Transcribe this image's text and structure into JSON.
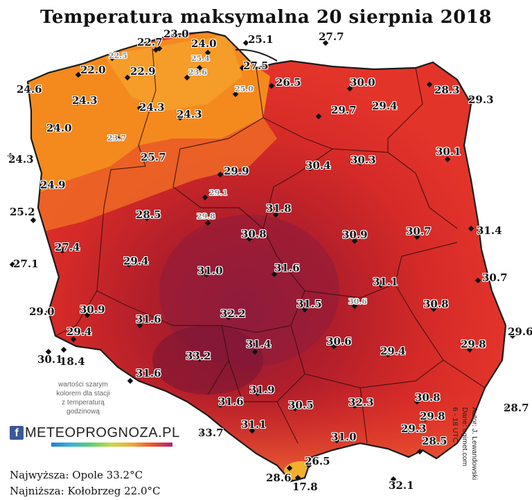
{
  "title": "Temperatura maksymalna 20 sierpnia 2018",
  "legend_note": [
    "wartości szarym",
    "kolorem dla stacji",
    "z temperaturą",
    "godzinową"
  ],
  "logo_text": "METEOPROGNOZA.PL",
  "logo_icon": "facebook-icon",
  "stats": {
    "highest": "Najwyższa: Opole 33.2°C",
    "lowest": "Najniższa: Kołobrzeg 22.0°C"
  },
  "credits": [
    "Autor: J. Lewandowski",
    "Dane: ogimet.com",
    "6 - 18 UTC"
  ],
  "colors": {
    "orange": "#f48a1e",
    "light_orange": "#f6a02a",
    "red": "#e3342a",
    "dark_red": "#b01e2a",
    "maroon": "#8e1c3c",
    "border": "#1a1a1a"
  },
  "stations": [
    {
      "v": "23.0"
    },
    {
      "v": "22.7"
    },
    {
      "v": "24.0"
    },
    {
      "v": "25.1"
    },
    {
      "v": "27.7"
    },
    {
      "v": "22.5",
      "grey": true
    },
    {
      "v": "25.4",
      "grey": true
    },
    {
      "v": "22.0"
    },
    {
      "v": "22.9"
    },
    {
      "v": "23.6",
      "grey": true
    },
    {
      "v": "27.5"
    },
    {
      "v": "24.6"
    },
    {
      "v": "25.0",
      "grey": true
    },
    {
      "v": "26.5"
    },
    {
      "v": "30.0"
    },
    {
      "v": "28.3"
    },
    {
      "v": "29.3"
    },
    {
      "v": "24.3"
    },
    {
      "v": "24.3"
    },
    {
      "v": "29.7"
    },
    {
      "v": "29.4"
    },
    {
      "v": "24.0"
    },
    {
      "v": "24.3"
    },
    {
      "v": "23.7",
      "grey": true
    },
    {
      "v": "24.3"
    },
    {
      "v": "25.7"
    },
    {
      "v": "30.1"
    },
    {
      "v": "29.9"
    },
    {
      "v": "30.4"
    },
    {
      "v": "30.3"
    },
    {
      "v": "24.9"
    },
    {
      "v": "29.1",
      "grey": true
    },
    {
      "v": "25.2"
    },
    {
      "v": "28.5"
    },
    {
      "v": "29.8",
      "grey": true
    },
    {
      "v": "31.8"
    },
    {
      "v": "30.8"
    },
    {
      "v": "30.9"
    },
    {
      "v": "30.7"
    },
    {
      "v": "31.4"
    },
    {
      "v": "27.4"
    },
    {
      "v": "27.1"
    },
    {
      "v": "29.4"
    },
    {
      "v": "31.0"
    },
    {
      "v": "31.6"
    },
    {
      "v": "31.1"
    },
    {
      "v": "30.7"
    },
    {
      "v": "30.9"
    },
    {
      "v": "31.6"
    },
    {
      "v": "32.2"
    },
    {
      "v": "31.5"
    },
    {
      "v": "30.6",
      "grey": true
    },
    {
      "v": "30.8"
    },
    {
      "v": "29.0"
    },
    {
      "v": "29.4"
    },
    {
      "v": "29.6"
    },
    {
      "v": "30.6"
    },
    {
      "v": "29.8"
    },
    {
      "v": "31.4"
    },
    {
      "v": "30.1"
    },
    {
      "v": "18.4"
    },
    {
      "v": "33.2"
    },
    {
      "v": "29.4"
    },
    {
      "v": "31.6"
    },
    {
      "v": "31.9"
    },
    {
      "v": "31.6"
    },
    {
      "v": "30.5"
    },
    {
      "v": "32.3"
    },
    {
      "v": "30.8"
    },
    {
      "v": "28.7"
    },
    {
      "v": "29.8"
    },
    {
      "v": "33.7"
    },
    {
      "v": "31.1"
    },
    {
      "v": "31.0"
    },
    {
      "v": "29.3"
    },
    {
      "v": "28.5"
    },
    {
      "v": "26.5"
    },
    {
      "v": "28.6"
    },
    {
      "v": "17.8"
    },
    {
      "v": "32.1"
    }
  ]
}
